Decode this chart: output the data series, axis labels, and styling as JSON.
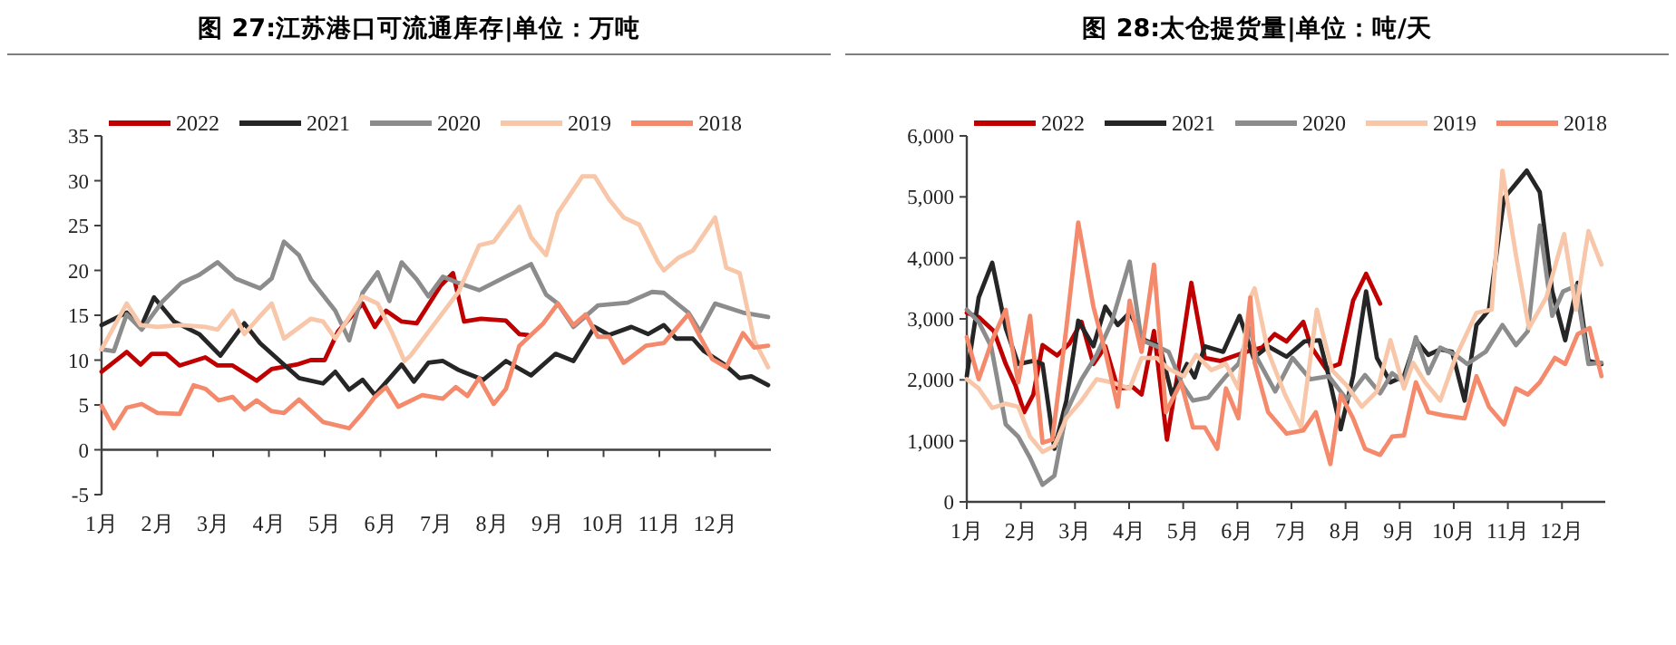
{
  "chart_data": [
    {
      "type": "line",
      "title": "图 27:江苏港口可流通库存|单位：万吨",
      "legend": "top",
      "xlim": [
        1,
        13
      ],
      "xticks": [
        {
          "value": 1,
          "label": "1月"
        },
        {
          "value": 2,
          "label": "2月"
        },
        {
          "value": 3,
          "label": "3月"
        },
        {
          "value": 4,
          "label": "4月"
        },
        {
          "value": 5,
          "label": "5月"
        },
        {
          "value": 6,
          "label": "6月"
        },
        {
          "value": 7,
          "label": "7月"
        },
        {
          "value": 8,
          "label": "8月"
        },
        {
          "value": 9,
          "label": "9月"
        },
        {
          "value": 10,
          "label": "10月"
        },
        {
          "value": 11,
          "label": "11月"
        },
        {
          "value": 12,
          "label": "12月"
        }
      ],
      "ylim": [
        -5,
        35
      ],
      "yticks": [
        -5,
        0,
        5,
        10,
        15,
        20,
        25,
        30,
        35
      ],
      "series": [
        {
          "name": "2022",
          "color": "#c00000",
          "x": [
            1,
            1.45,
            1.7,
            1.9,
            2.16,
            2.4,
            2.86,
            3.08,
            3.35,
            3.78,
            4.05,
            4.5,
            4.75,
            5,
            5.24,
            5.68,
            5.9,
            6.1,
            6.38,
            6.65,
            7.08,
            7.3,
            7.5,
            7.8,
            8.25,
            8.49,
            8.65
          ],
          "values": [
            8.7,
            10.9,
            9.5,
            10.7,
            10.7,
            9.4,
            10.3,
            9.4,
            9.4,
            7.7,
            9,
            9.5,
            10,
            10,
            13.2,
            16.3,
            13.7,
            15.5,
            14.3,
            14.1,
            18.3,
            19.7,
            14.3,
            14.6,
            14.4,
            12.9,
            12.8
          ]
        },
        {
          "name": "2021",
          "color": "#262626",
          "x": [
            1,
            1.45,
            1.7,
            1.94,
            2.3,
            2.75,
            3.13,
            3.56,
            3.84,
            4.27,
            4.54,
            4.97,
            5.19,
            5.44,
            5.68,
            5.9,
            6.38,
            6.6,
            6.86,
            7.12,
            7.4,
            7.84,
            8.25,
            8.7,
            9.14,
            9.46,
            9.84,
            10.1,
            10.5,
            10.8,
            11.08,
            11.3,
            11.6,
            11.8,
            12.17,
            12.44,
            12.65,
            12.95
          ],
          "values": [
            13.9,
            15.3,
            13.6,
            17,
            14.3,
            12.9,
            10.5,
            14.1,
            11.9,
            9.5,
            8,
            7.4,
            8.7,
            6.7,
            7.8,
            6.1,
            9.5,
            7.6,
            9.7,
            9.9,
            8.9,
            7.8,
            9.9,
            8.3,
            10.7,
            9.9,
            13.7,
            12.8,
            13.7,
            12.9,
            13.9,
            12.4,
            12.4,
            11,
            9.5,
            8,
            8.2,
            7.2
          ]
        },
        {
          "name": "2020",
          "color": "#8c8c8c",
          "x": [
            1,
            1.22,
            1.45,
            1.72,
            2.1,
            2.43,
            2.75,
            3.08,
            3.4,
            3.84,
            4.05,
            4.27,
            4.54,
            4.75,
            5.19,
            5.44,
            5.68,
            5.95,
            6.16,
            6.38,
            6.65,
            6.86,
            7.12,
            7.4,
            7.77,
            8.25,
            8.7,
            8.97,
            9.18,
            9.46,
            9.9,
            10.43,
            10.87,
            11.08,
            11.52,
            11.73,
            12,
            12.5,
            12.95
          ],
          "values": [
            11.2,
            11,
            15.1,
            13.4,
            16.6,
            18.6,
            19.5,
            20.9,
            19.1,
            18,
            19.1,
            23.2,
            21.7,
            19,
            15.5,
            12.2,
            17.5,
            19.8,
            16.6,
            20.9,
            19,
            17.1,
            19.3,
            18.6,
            17.8,
            19.3,
            20.7,
            17.3,
            16.3,
            13.7,
            16.1,
            16.4,
            17.6,
            17.5,
            15.3,
            13.2,
            16.3,
            15.3,
            14.8
          ]
        },
        {
          "name": "2019",
          "color": "#f8c6a8",
          "x": [
            1,
            1.45,
            1.7,
            2,
            2.43,
            2.86,
            3.08,
            3.35,
            3.56,
            3.84,
            4.05,
            4.27,
            4.75,
            4.97,
            5.19,
            5.68,
            5.95,
            6.22,
            6.43,
            6.54,
            7,
            7.4,
            7.77,
            8.03,
            8.49,
            8.7,
            8.97,
            9.18,
            9.62,
            9.84,
            10.1,
            10.36,
            10.64,
            10.97,
            11.08,
            11.34,
            11.6,
            12,
            12.2,
            12.44,
            12.7,
            12.95
          ],
          "values": [
            11.2,
            16.3,
            13.9,
            13.7,
            13.9,
            13.7,
            13.4,
            15.5,
            12.9,
            14.9,
            16.3,
            12.4,
            14.6,
            14.3,
            12.4,
            17.1,
            16.3,
            12.9,
            9.9,
            10.5,
            14.3,
            17.6,
            22.8,
            23.2,
            27.1,
            23.7,
            21.7,
            26.4,
            30.5,
            30.5,
            27.9,
            25.9,
            25.1,
            21,
            20,
            21.4,
            22.2,
            25.9,
            20.3,
            19.7,
            12.2,
            9.2
          ]
        },
        {
          "name": "2018",
          "color": "#f4896b",
          "x": [
            1,
            1.22,
            1.45,
            1.72,
            2,
            2.4,
            2.65,
            2.86,
            3.1,
            3.35,
            3.56,
            3.78,
            4.05,
            4.27,
            4.54,
            4.97,
            5.44,
            5.68,
            5.9,
            6.1,
            6.32,
            6.65,
            6.75,
            7.12,
            7.35,
            7.56,
            7.77,
            8.03,
            8.25,
            8.49,
            8.92,
            9.18,
            9.46,
            9.68,
            9.9,
            10.1,
            10.36,
            10.76,
            11.08,
            11.52,
            11.73,
            11.95,
            12.2,
            12.5,
            12.7,
            12.95
          ],
          "values": [
            4.9,
            2.4,
            4.7,
            5.1,
            4.1,
            4,
            7.2,
            6.8,
            5.5,
            5.9,
            4.5,
            5.5,
            4.3,
            4.1,
            5.6,
            3.1,
            2.4,
            4.1,
            5.9,
            7,
            4.8,
            5.8,
            6.1,
            5.7,
            7,
            6,
            8,
            5.1,
            6.8,
            11.6,
            14.1,
            16.3,
            13.9,
            15.1,
            12.6,
            12.6,
            9.7,
            11.6,
            11.9,
            15.1,
            12.6,
            10.1,
            9.2,
            13,
            11.4,
            11.6
          ]
        }
      ]
    },
    {
      "type": "line",
      "title": "图 28:太仓提货量|单位：吨/天",
      "legend": "top",
      "xlim": [
        1,
        12.8
      ],
      "xticks": [
        {
          "value": 1,
          "label": "1月"
        },
        {
          "value": 2,
          "label": "2月"
        },
        {
          "value": 3,
          "label": "3月"
        },
        {
          "value": 4,
          "label": "4月"
        },
        {
          "value": 5,
          "label": "5月"
        },
        {
          "value": 6,
          "label": "6月"
        },
        {
          "value": 7,
          "label": "7月"
        },
        {
          "value": 8,
          "label": "8月"
        },
        {
          "value": 9,
          "label": "9月"
        },
        {
          "value": 10,
          "label": "10月"
        },
        {
          "value": 11,
          "label": "11月"
        },
        {
          "value": 12,
          "label": "12月"
        }
      ],
      "ylim": [
        0,
        6000
      ],
      "yticks": [
        0,
        {
          "value": 1000,
          "label": "1,000"
        },
        {
          "value": 2000,
          "label": "2,000"
        },
        {
          "value": 3000,
          "label": "3,000"
        },
        {
          "value": 4000,
          "label": "4,000"
        },
        {
          "value": 5000,
          "label": "5,000"
        },
        {
          "value": 6000,
          "label": "6,000"
        }
      ],
      "series": [
        {
          "name": "2022",
          "color": "#c00000",
          "x": [
            1,
            1.22,
            1.5,
            1.72,
            1.9,
            2.06,
            2.23,
            2.4,
            2.67,
            2.9,
            3.12,
            3.34,
            3.56,
            3.79,
            4.07,
            4.23,
            4.46,
            4.7,
            4.9,
            5.15,
            5.4,
            5.68,
            6,
            6.24,
            6.46,
            6.69,
            6.91,
            7.22,
            7.36,
            7.64,
            7.89,
            8.14,
            8.38,
            8.64
          ],
          "values": [
            3100,
            3030,
            2800,
            2260,
            1910,
            1470,
            1760,
            2570,
            2400,
            2600,
            2950,
            2260,
            2550,
            1860,
            1880,
            1760,
            2800,
            1020,
            2110,
            3590,
            2360,
            2310,
            2410,
            2480,
            2530,
            2750,
            2630,
            2950,
            2550,
            2180,
            2260,
            3300,
            3740,
            3250
          ]
        },
        {
          "name": "2021",
          "color": "#262626",
          "x": [
            1,
            1.22,
            1.47,
            1.72,
            1.95,
            2.23,
            2.4,
            2.62,
            2.84,
            3.06,
            3.34,
            3.56,
            3.79,
            4.01,
            4.29,
            4.57,
            4.79,
            5.07,
            5.21,
            5.4,
            5.74,
            6.04,
            6.3,
            6.57,
            6.91,
            7.24,
            7.52,
            7.69,
            7.91,
            8.14,
            8.38,
            8.58,
            8.83,
            9.08,
            9.3,
            9.53,
            9.75,
            9.97,
            10.2,
            10.42,
            10.65,
            10.93,
            11.35,
            11.59,
            11.82,
            12.06,
            12.29,
            12.49,
            12.73
          ],
          "values": [
            2060,
            3350,
            3920,
            2850,
            2260,
            2310,
            2260,
            870,
            1660,
            2970,
            2550,
            3200,
            2900,
            3100,
            2650,
            2550,
            1760,
            2260,
            2040,
            2550,
            2460,
            3050,
            2360,
            2550,
            2380,
            2630,
            2650,
            2060,
            1190,
            2060,
            3450,
            2360,
            1960,
            2060,
            2650,
            2410,
            2500,
            2460,
            1660,
            2900,
            3150,
            4980,
            5430,
            5080,
            3450,
            2650,
            3590,
            2310,
            2260
          ]
        },
        {
          "name": "2020",
          "color": "#8c8c8c",
          "x": [
            1,
            1.22,
            1.45,
            1.72,
            1.95,
            2.17,
            2.4,
            2.62,
            2.84,
            3.12,
            3.4,
            3.68,
            4.01,
            4.23,
            4.51,
            4.73,
            4.99,
            5.18,
            5.46,
            5.79,
            6.02,
            6.24,
            6.35,
            6.7,
            7.02,
            7.35,
            7.69,
            8.02,
            8.36,
            8.64,
            8.86,
            9.08,
            9.3,
            9.53,
            9.75,
            10.03,
            10.25,
            10.59,
            10.9,
            11.15,
            11.37,
            11.59,
            11.82,
            12.02,
            12.26,
            12.49,
            12.73
          ],
          "values": [
            3150,
            2950,
            2550,
            1270,
            1070,
            720,
            280,
            430,
            1470,
            2010,
            2410,
            2950,
            3940,
            2650,
            2550,
            2460,
            1910,
            1660,
            1710,
            2060,
            2260,
            2850,
            2380,
            1810,
            2360,
            2010,
            2060,
            1680,
            2080,
            1780,
            2110,
            1960,
            2700,
            2110,
            2530,
            2410,
            2260,
            2460,
            2900,
            2570,
            2800,
            4530,
            3050,
            3450,
            3540,
            2260,
            2280
          ]
        },
        {
          "name": "2019",
          "color": "#f8c6a8",
          "x": [
            1,
            1.22,
            1.47,
            1.72,
            1.95,
            2.17,
            2.4,
            2.62,
            2.84,
            3.12,
            3.4,
            3.68,
            4.01,
            4.23,
            4.51,
            4.73,
            5.01,
            5.24,
            5.52,
            5.79,
            6.02,
            6.24,
            6.32,
            6.57,
            6.88,
            7.18,
            7.47,
            7.75,
            8.02,
            8.3,
            8.58,
            8.83,
            9.08,
            9.25,
            9.47,
            9.75,
            10.03,
            10.42,
            10.7,
            10.9,
            11.15,
            11.39,
            11.71,
            12.04,
            12.26,
            12.49,
            12.73
          ],
          "values": [
            2010,
            1860,
            1540,
            1610,
            1560,
            1070,
            820,
            920,
            1370,
            1660,
            2010,
            1960,
            1860,
            2360,
            2360,
            2180,
            2060,
            2410,
            2160,
            2260,
            1860,
            3350,
            3500,
            2460,
            1760,
            1220,
            3150,
            2160,
            1910,
            1560,
            1810,
            2650,
            1860,
            2280,
            1960,
            1660,
            2360,
            3100,
            3150,
            5430,
            4040,
            2850,
            3350,
            4390,
            3150,
            4440,
            3890
          ]
        },
        {
          "name": "2018",
          "color": "#f4896b",
          "x": [
            1,
            1.22,
            1.47,
            1.72,
            1.95,
            2.17,
            2.4,
            2.58,
            2.84,
            3.06,
            3.34,
            3.56,
            3.79,
            4.01,
            4.23,
            4.46,
            4.68,
            4.96,
            5.18,
            5.4,
            5.63,
            5.79,
            6.02,
            6.24,
            6.32,
            6.57,
            6.91,
            7.22,
            7.45,
            7.72,
            7.91,
            8.14,
            8.36,
            8.64,
            8.86,
            9.08,
            9.3,
            9.53,
            9.8,
            10.2,
            10.42,
            10.65,
            10.93,
            11.15,
            11.37,
            11.59,
            11.87,
            12.06,
            12.29,
            12.51,
            12.73
          ],
          "values": [
            2700,
            2010,
            2650,
            3150,
            1960,
            3050,
            970,
            1020,
            2850,
            4580,
            3200,
            2460,
            1560,
            3300,
            2460,
            3890,
            1470,
            1960,
            1220,
            1220,
            870,
            1860,
            1370,
            3350,
            2280,
            1470,
            1120,
            1170,
            1470,
            620,
            1760,
            1370,
            870,
            770,
            1070,
            1090,
            1960,
            1470,
            1420,
            1370,
            2060,
            1560,
            1270,
            1860,
            1760,
            1960,
            2360,
            2260,
            2750,
            2850,
            2060
          ]
        }
      ]
    }
  ]
}
